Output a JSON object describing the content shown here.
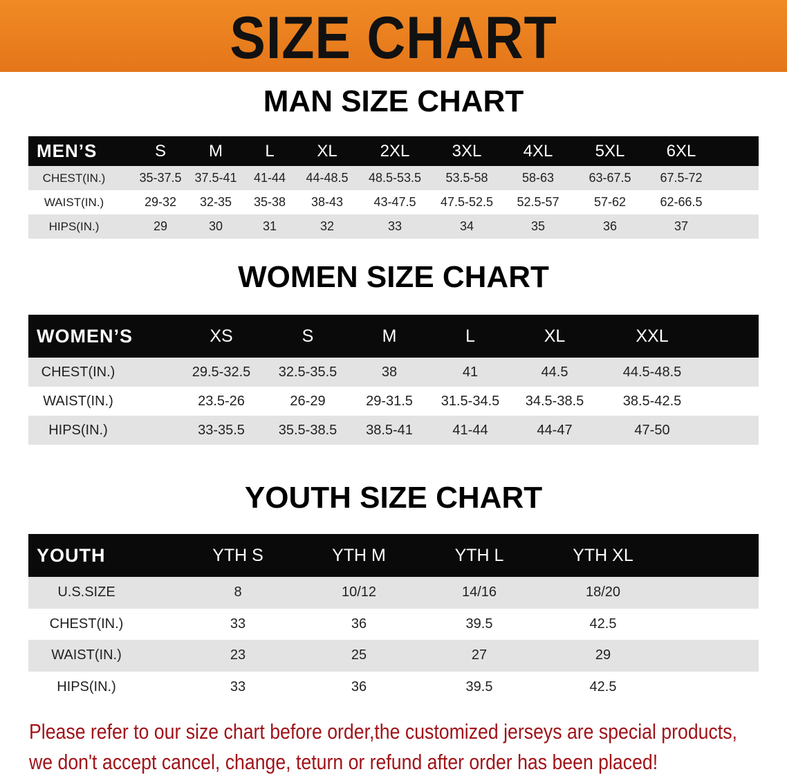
{
  "banner": {
    "title": "SIZE CHART",
    "color": "#ec8020"
  },
  "men": {
    "title": "MAN SIZE CHART",
    "header": [
      "MEN’S",
      "S",
      "M",
      "L",
      "XL",
      "2XL",
      "3XL",
      "4XL",
      "5XL",
      "6XL"
    ],
    "rows": [
      [
        "CHEST(IN.)",
        "35-37.5",
        "37.5-41",
        "41-44",
        "44-48.5",
        "48.5-53.5",
        "53.5-58",
        "58-63",
        "63-67.5",
        "67.5-72"
      ],
      [
        "WAIST(IN.)",
        "29-32",
        "32-35",
        "35-38",
        "38-43",
        "43-47.5",
        "47.5-52.5",
        "52.5-57",
        "57-62",
        "62-66.5"
      ],
      [
        "HIPS(IN.)",
        "29",
        "30",
        "31",
        "32",
        "33",
        "34",
        "35",
        "36",
        "37"
      ]
    ]
  },
  "women": {
    "title": "WOMEN SIZE CHART",
    "header": [
      "WOMEN’S",
      "XS",
      "S",
      "M",
      "L",
      "XL",
      "XXL"
    ],
    "rows": [
      [
        "CHEST(IN.)",
        "29.5-32.5",
        "32.5-35.5",
        "38",
        "41",
        "44.5",
        "44.5-48.5"
      ],
      [
        "WAIST(IN.)",
        "23.5-26",
        "26-29",
        "29-31.5",
        "31.5-34.5",
        "34.5-38.5",
        "38.5-42.5"
      ],
      [
        "HIPS(IN.)",
        "33-35.5",
        "35.5-38.5",
        "38.5-41",
        "41-44",
        "44-47",
        "47-50"
      ]
    ]
  },
  "youth": {
    "title": "YOUTH SIZE CHART",
    "header": [
      "YOUTH",
      "YTH S",
      "YTH M",
      "YTH L",
      "YTH XL"
    ],
    "rows": [
      [
        "U.S.SIZE",
        "8",
        "10/12",
        "14/16",
        "18/20"
      ],
      [
        "CHEST(IN.)",
        "33",
        "36",
        "39.5",
        "42.5"
      ],
      [
        "WAIST(IN.)",
        "23",
        "25",
        "27",
        "29"
      ],
      [
        "HIPS(IN.)",
        "33",
        "36",
        "39.5",
        "42.5"
      ]
    ]
  },
  "note": {
    "line1": "Please refer to our size chart before order,the customized jerseys are special products,",
    "line2": "we don't accept cancel, change, teturn or refund after order has been placed!",
    "color": "#a0141a"
  }
}
